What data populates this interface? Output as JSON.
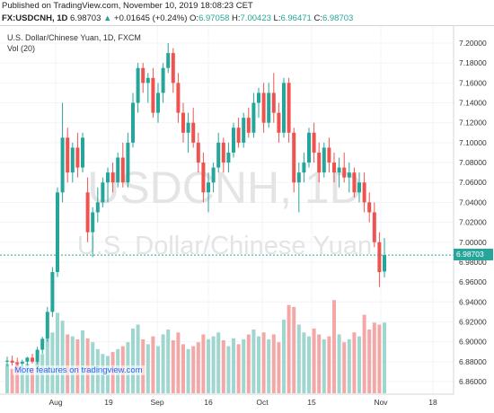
{
  "header": {
    "published": "Published on TradingView.com, November 10, 2019 18:08:23 CET",
    "symbol": "FX:USDCNH, 1D",
    "last": "6.98703",
    "arrow": "▲",
    "change": "+0.01645 (+0.24%)",
    "o_label": "O:",
    "o_value": "6.97058",
    "h_label": "H:",
    "h_value": "7.00423",
    "l_label": "L:",
    "l_value": "6.96471",
    "c_label": "C:",
    "c_value": "6.98703"
  },
  "legend": {
    "title": "U.S. Dollar/Chinese Yuan, 1D, FXCM",
    "vol": "Vol (20)"
  },
  "watermark": {
    "line1": "USDCNH, 1D",
    "line2": "U.S. Dollar/Chinese Yuan"
  },
  "promo": "More features on tradingview.com",
  "current_price_label": "6.98703",
  "colors": {
    "up": "#26a69a",
    "down": "#ef5350",
    "vol_up": "#9fd6cf",
    "vol_down": "#f4a7a7",
    "price_line": "#26a69a"
  },
  "chart_data": {
    "type": "candlestick",
    "symbol": "FX:USDCNH",
    "interval": "1D",
    "y_ticks": [
      "7.20000",
      "7.18000",
      "7.16000",
      "7.14000",
      "7.12000",
      "7.10000",
      "7.08000",
      "7.06000",
      "7.04000",
      "7.02000",
      "7.00000",
      "6.98000",
      "6.96000",
      "6.94000",
      "6.92000",
      "6.90000",
      "6.88000",
      "6.86000"
    ],
    "x_ticks": [
      "Aug",
      "19",
      "Sep",
      "16",
      "Oct",
      "15",
      "Nov",
      "18"
    ],
    "ylim": [
      6.85,
      7.205
    ],
    "current_price": 6.98703,
    "candles": [
      {
        "o": 6.88,
        "h": 6.885,
        "l": 6.875,
        "c": 6.881,
        "v": 0.3
      },
      {
        "o": 6.881,
        "h": 6.886,
        "l": 6.876,
        "c": 6.879,
        "v": 0.25
      },
      {
        "o": 6.879,
        "h": 6.884,
        "l": 6.872,
        "c": 6.878,
        "v": 0.32
      },
      {
        "o": 6.878,
        "h": 6.882,
        "l": 6.874,
        "c": 6.88,
        "v": 0.28
      },
      {
        "o": 6.88,
        "h": 6.885,
        "l": 6.876,
        "c": 6.884,
        "v": 0.3
      },
      {
        "o": 6.884,
        "h": 6.888,
        "l": 6.878,
        "c": 6.88,
        "v": 0.26
      },
      {
        "o": 6.88,
        "h": 6.895,
        "l": 6.878,
        "c": 6.892,
        "v": 0.33
      },
      {
        "o": 6.892,
        "h": 6.905,
        "l": 6.888,
        "c": 6.903,
        "v": 0.4
      },
      {
        "o": 6.903,
        "h": 6.935,
        "l": 6.9,
        "c": 6.93,
        "v": 0.55
      },
      {
        "o": 6.93,
        "h": 6.975,
        "l": 6.925,
        "c": 6.97,
        "v": 0.62
      },
      {
        "o": 6.97,
        "h": 7.055,
        "l": 6.965,
        "c": 7.05,
        "v": 0.82
      },
      {
        "o": 7.05,
        "h": 7.14,
        "l": 7.04,
        "c": 7.105,
        "v": 0.74
      },
      {
        "o": 7.105,
        "h": 7.115,
        "l": 7.06,
        "c": 7.07,
        "v": 0.6
      },
      {
        "o": 7.07,
        "h": 7.1,
        "l": 7.06,
        "c": 7.095,
        "v": 0.58
      },
      {
        "o": 7.095,
        "h": 7.11,
        "l": 7.065,
        "c": 7.075,
        "v": 0.55
      },
      {
        "o": 7.075,
        "h": 7.11,
        "l": 7.07,
        "c": 7.105,
        "v": 0.64
      },
      {
        "o": 7.05,
        "h": 7.065,
        "l": 7.0,
        "c": 7.01,
        "v": 0.56
      },
      {
        "o": 7.01,
        "h": 7.035,
        "l": 6.985,
        "c": 7.03,
        "v": 0.52
      },
      {
        "o": 7.03,
        "h": 7.055,
        "l": 7.02,
        "c": 7.04,
        "v": 0.45
      },
      {
        "o": 7.04,
        "h": 7.065,
        "l": 7.035,
        "c": 7.06,
        "v": 0.4
      },
      {
        "o": 7.06,
        "h": 7.075,
        "l": 7.04,
        "c": 7.07,
        "v": 0.38
      },
      {
        "o": 7.07,
        "h": 7.08,
        "l": 7.05,
        "c": 7.06,
        "v": 0.42
      },
      {
        "o": 7.06,
        "h": 7.09,
        "l": 7.055,
        "c": 7.085,
        "v": 0.45
      },
      {
        "o": 7.085,
        "h": 7.1,
        "l": 7.055,
        "c": 7.06,
        "v": 0.48
      },
      {
        "o": 7.06,
        "h": 7.11,
        "l": 7.055,
        "c": 7.1,
        "v": 0.52
      },
      {
        "o": 7.1,
        "h": 7.15,
        "l": 7.095,
        "c": 7.14,
        "v": 0.66
      },
      {
        "o": 7.14,
        "h": 7.18,
        "l": 7.13,
        "c": 7.175,
        "v": 0.7
      },
      {
        "o": 7.175,
        "h": 7.18,
        "l": 7.15,
        "c": 7.16,
        "v": 0.55
      },
      {
        "o": 7.16,
        "h": 7.17,
        "l": 7.14,
        "c": 7.165,
        "v": 0.5
      },
      {
        "o": 7.165,
        "h": 7.175,
        "l": 7.125,
        "c": 7.13,
        "v": 0.58
      },
      {
        "o": 7.13,
        "h": 7.16,
        "l": 7.12,
        "c": 7.15,
        "v": 0.48
      },
      {
        "o": 7.15,
        "h": 7.18,
        "l": 7.14,
        "c": 7.175,
        "v": 0.6
      },
      {
        "o": 7.175,
        "h": 7.2,
        "l": 7.17,
        "c": 7.19,
        "v": 0.65
      },
      {
        "o": 7.19,
        "h": 7.195,
        "l": 7.15,
        "c": 7.16,
        "v": 0.54
      },
      {
        "o": 7.16,
        "h": 7.17,
        "l": 7.12,
        "c": 7.13,
        "v": 0.62
      },
      {
        "o": 7.13,
        "h": 7.14,
        "l": 7.1,
        "c": 7.11,
        "v": 0.5
      },
      {
        "o": 7.11,
        "h": 7.13,
        "l": 7.09,
        "c": 7.12,
        "v": 0.45
      },
      {
        "o": 7.12,
        "h": 7.135,
        "l": 7.095,
        "c": 7.1,
        "v": 0.48
      },
      {
        "o": 7.1,
        "h": 7.11,
        "l": 7.07,
        "c": 7.08,
        "v": 0.52
      },
      {
        "o": 7.08,
        "h": 7.09,
        "l": 7.04,
        "c": 7.05,
        "v": 0.6
      },
      {
        "o": 7.05,
        "h": 7.07,
        "l": 7.03,
        "c": 7.06,
        "v": 0.55
      },
      {
        "o": 7.06,
        "h": 7.08,
        "l": 7.05,
        "c": 7.075,
        "v": 0.58
      },
      {
        "o": 7.075,
        "h": 7.11,
        "l": 7.07,
        "c": 7.1,
        "v": 0.62
      },
      {
        "o": 7.1,
        "h": 7.105,
        "l": 7.07,
        "c": 7.08,
        "v": 0.54
      },
      {
        "o": 7.08,
        "h": 7.1,
        "l": 7.07,
        "c": 7.09,
        "v": 0.48
      },
      {
        "o": 7.09,
        "h": 7.12,
        "l": 7.085,
        "c": 7.115,
        "v": 0.56
      },
      {
        "o": 7.115,
        "h": 7.125,
        "l": 7.095,
        "c": 7.1,
        "v": 0.5
      },
      {
        "o": 7.1,
        "h": 7.13,
        "l": 7.095,
        "c": 7.125,
        "v": 0.55
      },
      {
        "o": 7.125,
        "h": 7.135,
        "l": 7.105,
        "c": 7.11,
        "v": 0.6
      },
      {
        "o": 7.11,
        "h": 7.15,
        "l": 7.105,
        "c": 7.14,
        "v": 0.65
      },
      {
        "o": 7.14,
        "h": 7.155,
        "l": 7.125,
        "c": 7.15,
        "v": 0.58
      },
      {
        "o": 7.15,
        "h": 7.16,
        "l": 7.11,
        "c": 7.12,
        "v": 0.62
      },
      {
        "o": 7.12,
        "h": 7.16,
        "l": 7.115,
        "c": 7.15,
        "v": 0.55
      },
      {
        "o": 7.15,
        "h": 7.17,
        "l": 7.12,
        "c": 7.13,
        "v": 0.6
      },
      {
        "o": 7.13,
        "h": 7.14,
        "l": 7.1,
        "c": 7.11,
        "v": 0.52
      },
      {
        "o": 7.11,
        "h": 7.165,
        "l": 7.105,
        "c": 7.16,
        "v": 0.75
      },
      {
        "o": 7.16,
        "h": 7.165,
        "l": 7.1,
        "c": 7.11,
        "v": 0.9
      },
      {
        "o": 7.11,
        "h": 7.115,
        "l": 7.05,
        "c": 7.06,
        "v": 0.88
      },
      {
        "o": 7.06,
        "h": 7.08,
        "l": 7.03,
        "c": 7.07,
        "v": 0.7
      },
      {
        "o": 7.07,
        "h": 7.09,
        "l": 7.06,
        "c": 7.08,
        "v": 0.62
      },
      {
        "o": 7.08,
        "h": 7.115,
        "l": 7.075,
        "c": 7.11,
        "v": 0.58
      },
      {
        "o": 7.11,
        "h": 7.12,
        "l": 7.08,
        "c": 7.09,
        "v": 0.66
      },
      {
        "o": 7.09,
        "h": 7.1,
        "l": 7.06,
        "c": 7.07,
        "v": 0.6
      },
      {
        "o": 7.07,
        "h": 7.1,
        "l": 7.065,
        "c": 7.095,
        "v": 0.55
      },
      {
        "o": 7.095,
        "h": 7.105,
        "l": 7.07,
        "c": 7.08,
        "v": 0.58
      },
      {
        "o": 7.08,
        "h": 7.09,
        "l": 7.06,
        "c": 7.07,
        "v": 0.95
      },
      {
        "o": 7.07,
        "h": 7.085,
        "l": 7.055,
        "c": 7.075,
        "v": 0.6
      },
      {
        "o": 7.075,
        "h": 7.09,
        "l": 7.06,
        "c": 7.065,
        "v": 0.52
      },
      {
        "o": 7.065,
        "h": 7.08,
        "l": 7.05,
        "c": 7.07,
        "v": 0.55
      },
      {
        "o": 7.07,
        "h": 7.075,
        "l": 7.045,
        "c": 7.05,
        "v": 0.62
      },
      {
        "o": 7.05,
        "h": 7.07,
        "l": 7.04,
        "c": 7.06,
        "v": 0.58
      },
      {
        "o": 7.06,
        "h": 7.07,
        "l": 7.03,
        "c": 7.04,
        "v": 0.8
      },
      {
        "o": 7.04,
        "h": 7.05,
        "l": 7.02,
        "c": 7.03,
        "v": 0.65
      },
      {
        "o": 7.03,
        "h": 7.04,
        "l": 6.995,
        "c": 7.0,
        "v": 0.72
      },
      {
        "o": 7.0,
        "h": 7.01,
        "l": 6.955,
        "c": 6.97,
        "v": 0.7
      },
      {
        "o": 6.97058,
        "h": 7.00423,
        "l": 6.96471,
        "c": 6.98703,
        "v": 0.72
      }
    ]
  }
}
